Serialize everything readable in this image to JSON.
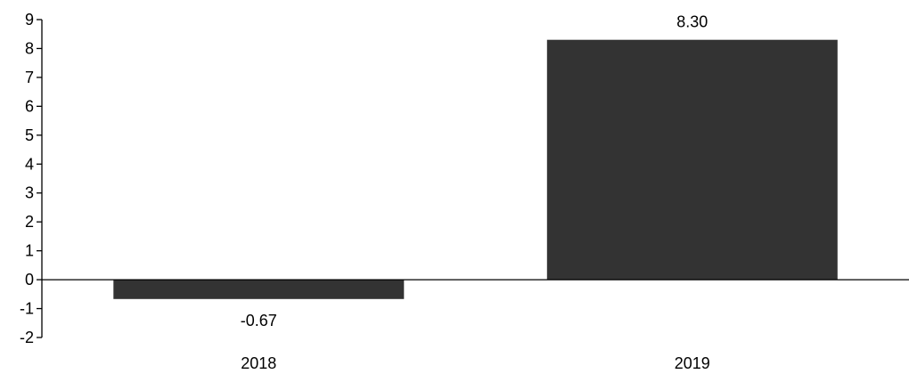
{
  "chart_data": {
    "type": "bar",
    "title": "",
    "xlabel": "",
    "ylabel": "",
    "categories": [
      "2018",
      "2019"
    ],
    "values": [
      -0.67,
      8.3
    ],
    "value_labels": [
      "-0.67",
      "8.30"
    ],
    "ylim": [
      -2,
      9
    ],
    "yticks": [
      -2,
      -1,
      0,
      1,
      2,
      3,
      4,
      5,
      6,
      7,
      8,
      9
    ],
    "grid": false,
    "legend": "none",
    "bar_color": "#333333",
    "axis_color": "#000000"
  }
}
